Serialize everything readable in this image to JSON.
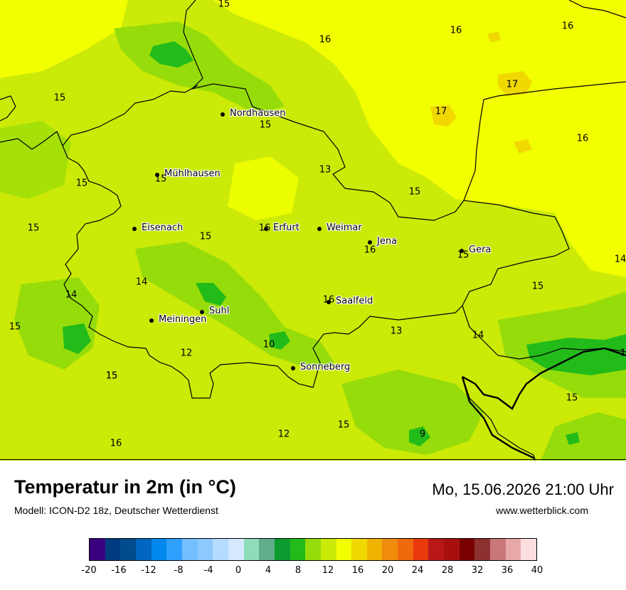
{
  "title": "Temperatur in 2m (in °C)",
  "model": "Modell: ICON-D2 18z, Deutscher Wetterdienst",
  "datetime": "Mo, 15.06.2026 21:00 Uhr",
  "website": "www.wetterblick.com",
  "cities": [
    {
      "name": "Nordhausen"
    },
    {
      "name": "Mühlhausen"
    },
    {
      "name": "Eisenach"
    },
    {
      "name": "Erfurt"
    },
    {
      "name": "Weimar"
    },
    {
      "name": "Jena"
    },
    {
      "name": "Gera"
    },
    {
      "name": "Suhl"
    },
    {
      "name": "Meiningen"
    },
    {
      "name": "Saalfeld"
    },
    {
      "name": "Sonneberg"
    }
  ],
  "temperature_labels": [
    "15",
    "16",
    "16",
    "16",
    "15",
    "17",
    "17",
    "15",
    "16",
    "13",
    "15",
    "15",
    "15",
    "15",
    "16",
    "15",
    "16",
    "15",
    "14",
    "14",
    "14",
    "15",
    "16",
    "15",
    "15",
    "13",
    "14",
    "12",
    "10",
    "15",
    "15",
    "12",
    "15",
    "9",
    "16",
    "1"
  ],
  "colorbar": {
    "colors": [
      "#3b0080",
      "#003b80",
      "#004c8c",
      "#0066c0",
      "#0088ee",
      "#30a0ff",
      "#73bfff",
      "#8ec8ff",
      "#b5dcff",
      "#d5e9ff",
      "#8fdcb8",
      "#60ae8a",
      "#0c9b2e",
      "#22bb1a",
      "#96dc0a",
      "#cbea07",
      "#f2ff00",
      "#f0d800",
      "#f0b400",
      "#ef8c0c",
      "#ef6a0c",
      "#e83a0c",
      "#b81818",
      "#a81010",
      "#7a0000",
      "#8c3030",
      "#c87878",
      "#e9a8a8",
      "#fddede"
    ],
    "ticks": [
      "-20",
      "-16",
      "-12",
      "-8",
      "-4",
      "0",
      "4",
      "8",
      "12",
      "16",
      "20",
      "24",
      "28",
      "32",
      "36",
      "40"
    ]
  }
}
